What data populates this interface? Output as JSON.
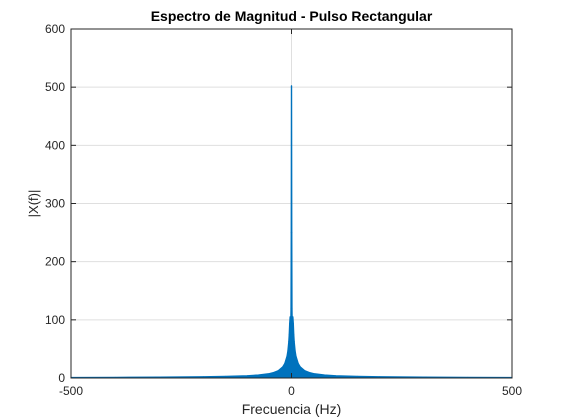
{
  "chart_data": {
    "type": "line",
    "title": "Espectro de Magnitud - Pulso Rectangular",
    "xlabel": "Frecuencia (Hz)",
    "ylabel": "|X(f)|",
    "xlim": [
      -500,
      500
    ],
    "ylim": [
      0,
      600
    ],
    "xticks": [
      -500,
      0,
      500
    ],
    "yticks": [
      0,
      100,
      200,
      300,
      400,
      500,
      600
    ],
    "grid": true,
    "legend": "none",
    "series": [
      {
        "color": "#0072BD",
        "x": [
          -500,
          -400,
          -300,
          -200,
          -150,
          -100,
          -75,
          -50,
          -40,
          -30,
          -20,
          -15,
          -10,
          -8,
          -6,
          -5,
          -4,
          -3,
          -2,
          -1.5,
          -1,
          -0.5,
          0,
          0.5,
          1,
          1.5,
          2,
          3,
          4,
          5,
          6,
          8,
          10,
          15,
          20,
          30,
          40,
          50,
          75,
          100,
          150,
          200,
          300,
          400,
          500
        ],
        "y": [
          0.8,
          1,
          1.3,
          2,
          2.6,
          3.8,
          5,
          7.5,
          9.4,
          12.5,
          18.8,
          25,
          37.5,
          46.9,
          62.5,
          75,
          93.8,
          105,
          105,
          95,
          120,
          250,
          502,
          250,
          120,
          95,
          105,
          105,
          93.8,
          75,
          62.5,
          46.9,
          37.5,
          25,
          18.8,
          12.5,
          9.4,
          7.5,
          5,
          3.8,
          2.6,
          2,
          1.3,
          1,
          0.8
        ]
      }
    ]
  }
}
